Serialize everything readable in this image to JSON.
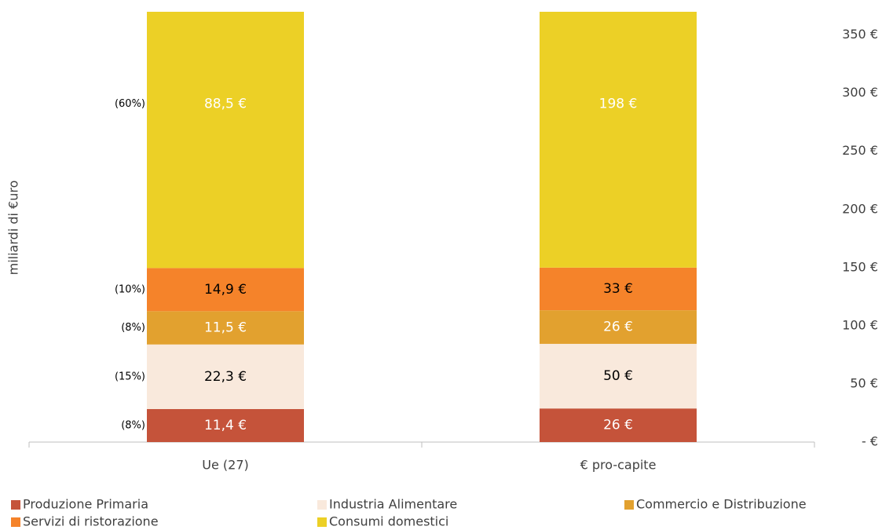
{
  "chart_data": {
    "type": "stacked_bar",
    "y_axis_label": "miliardi di €uro",
    "categories": [
      "Ue (27)",
      "€ pro-capite"
    ],
    "series": [
      {
        "name": "Produzione Primaria",
        "color": "#c5533a",
        "label_color": "#ffffff",
        "values": [
          11.4,
          26
        ],
        "value_labels": [
          "11,4 €",
          "26 €"
        ],
        "share": 8,
        "share_label": "(8%)"
      },
      {
        "name": "Industria Alimentare",
        "color": "#f9e9dc",
        "label_color": "#000000",
        "values": [
          22.3,
          50
        ],
        "value_labels": [
          "22,3 €",
          "50 €"
        ],
        "share": 15,
        "share_label": "(15%)"
      },
      {
        "name": "Commercio e Distribuzione",
        "color": "#e2a12f",
        "label_color": "#ffffff",
        "values": [
          11.5,
          26
        ],
        "value_labels": [
          "11,5 €",
          "26 €"
        ],
        "share": 8,
        "share_label": "(8%)"
      },
      {
        "name": "Servizi di ristorazione",
        "color": "#f5832a",
        "label_color": "#000000",
        "values": [
          14.9,
          33
        ],
        "value_labels": [
          "14,9 €",
          "33 €"
        ],
        "share": 10,
        "share_label": "(10%)"
      },
      {
        "name": "Consumi domestici",
        "color": "#ecd026",
        "label_color": "#ffffff",
        "values": [
          88.5,
          198
        ],
        "value_labels": [
          "88,5 €",
          "198 €"
        ],
        "share": 60,
        "share_label": "(60%)"
      }
    ],
    "y2lim": [
      0,
      370
    ],
    "y2ticks": [
      {
        "value": 0,
        "label": "- €"
      },
      {
        "value": 50,
        "label": "50 €"
      },
      {
        "value": 100,
        "label": "100 €"
      },
      {
        "value": 150,
        "label": "150 €"
      },
      {
        "value": 200,
        "label": "200 €"
      },
      {
        "value": 250,
        "label": "250 €"
      },
      {
        "value": 300,
        "label": "300 €"
      },
      {
        "value": 350,
        "label": "350 €"
      }
    ],
    "legend": "bottom"
  }
}
